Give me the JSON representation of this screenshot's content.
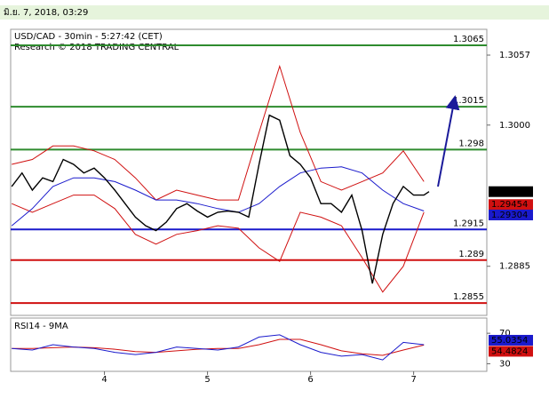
{
  "header": {
    "date": "มิ.ย. 7, 2018, 03:29"
  },
  "chart_data": [
    {
      "type": "line",
      "title": "USD/CAD - 30min - 5:27:42 (CET)",
      "subtitle": "Research © 2018 TRADING CENTRAL",
      "xlim": [
        3.09,
        7.71
      ],
      "ylim": [
        1.2845,
        1.3078
      ],
      "yticks": [
        1.3057,
        {
          "value": 1.3,
          "label": "1.3000"
        },
        1.2885
      ],
      "levels": [
        {
          "value": 1.3065,
          "color": "#2e8b2e"
        },
        {
          "value": 1.3015,
          "color": "#2e8b2e"
        },
        {
          "value": 1.298,
          "color": "#2e8b2e"
        },
        {
          "value": 1.2915,
          "color": "#1a1acc"
        },
        {
          "value": 1.289,
          "color": "#d01010"
        },
        {
          "value": 1.2855,
          "color": "#d01010"
        }
      ],
      "price_labels": [
        {
          "value": 1.29458,
          "color": "#000000"
        },
        {
          "value": 1.29454,
          "color": "#d01010"
        },
        {
          "value": 1.29304,
          "color": "#1a1acc"
        }
      ],
      "series": [
        {
          "color": "#d01010",
          "x": [
            3.1,
            3.3,
            3.5,
            3.7,
            3.9,
            4.1,
            4.3,
            4.5,
            4.7,
            4.9,
            5.1,
            5.3,
            5.5,
            5.7,
            5.9,
            6.1,
            6.3,
            6.5,
            6.7,
            6.9,
            7.1
          ],
          "values": [
            1.2968,
            1.2972,
            1.2983,
            1.2983,
            1.2979,
            1.2972,
            1.2957,
            1.2939,
            1.2947,
            1.2943,
            1.2939,
            1.2939,
            1.2994,
            1.3048,
            1.2994,
            1.2954,
            1.2947,
            1.2954,
            1.2961,
            1.2979,
            1.2954
          ]
        },
        {
          "color": "#d01010",
          "x": [
            3.1,
            3.3,
            3.5,
            3.7,
            3.9,
            4.1,
            4.3,
            4.5,
            4.7,
            4.9,
            5.1,
            5.3,
            5.5,
            5.7,
            5.9,
            6.1,
            6.3,
            6.5,
            6.7,
            6.9,
            7.1
          ],
          "values": [
            1.2936,
            1.2929,
            1.2936,
            1.2943,
            1.2943,
            1.2932,
            1.2911,
            1.2903,
            1.2911,
            1.2914,
            1.2918,
            1.2916,
            1.29,
            1.2889,
            1.2929,
            1.2925,
            1.2918,
            1.2892,
            1.2864,
            1.2885,
            1.2929
          ]
        },
        {
          "color": "#1a1acc",
          "x": [
            3.1,
            3.3,
            3.5,
            3.7,
            3.9,
            4.1,
            4.3,
            4.5,
            4.7,
            4.9,
            5.1,
            5.3,
            5.5,
            5.7,
            5.9,
            6.1,
            6.3,
            6.5,
            6.7,
            6.9,
            7.1
          ],
          "values": [
            1.2918,
            1.2932,
            1.295,
            1.2957,
            1.2957,
            1.2954,
            1.2947,
            1.2939,
            1.2939,
            1.2936,
            1.2932,
            1.2929,
            1.2936,
            1.295,
            1.2961,
            1.2965,
            1.2966,
            1.2961,
            1.2947,
            1.2936,
            1.293
          ]
        },
        {
          "color": "#000000",
          "x": [
            3.1,
            3.2,
            3.3,
            3.4,
            3.5,
            3.6,
            3.7,
            3.8,
            3.9,
            4.0,
            4.1,
            4.2,
            4.3,
            4.4,
            4.5,
            4.6,
            4.7,
            4.8,
            4.9,
            5.0,
            5.1,
            5.2,
            5.3,
            5.4,
            5.5,
            5.6,
            5.7,
            5.8,
            5.9,
            6.0,
            6.1,
            6.2,
            6.3,
            6.4,
            6.5,
            6.6,
            6.7,
            6.8,
            6.9,
            7.0,
            7.1,
            7.15
          ],
          "values": [
            1.295,
            1.2961,
            1.2947,
            1.2957,
            1.2954,
            1.2972,
            1.2968,
            1.2961,
            1.2965,
            1.2957,
            1.2947,
            1.2936,
            1.2925,
            1.2918,
            1.2914,
            1.2921,
            1.2932,
            1.2936,
            1.293,
            1.2925,
            1.2929,
            1.293,
            1.2929,
            1.2925,
            1.2968,
            1.3008,
            1.3004,
            1.2975,
            1.2968,
            1.2957,
            1.2936,
            1.2936,
            1.2929,
            1.2943,
            1.2914,
            1.2871,
            1.2911,
            1.2936,
            1.295,
            1.2943,
            1.2943,
            1.29458
          ]
        }
      ]
    },
    {
      "type": "line",
      "title": "RSI14 - 9MA",
      "xlim": [
        3.09,
        7.71
      ],
      "xticks": [
        4,
        5,
        6,
        7
      ],
      "ylim": [
        20,
        90
      ],
      "yticks": [
        30,
        70
      ],
      "price_labels": [
        {
          "value": 55.0354,
          "color": "#1a1acc"
        },
        {
          "value": 54.4824,
          "color": "#d01010"
        }
      ],
      "series": [
        {
          "color": "#d01010",
          "x": [
            3.1,
            3.3,
            3.5,
            3.7,
            3.9,
            4.1,
            4.3,
            4.5,
            4.7,
            4.9,
            5.1,
            5.3,
            5.5,
            5.7,
            5.9,
            6.1,
            6.3,
            6.5,
            6.7,
            6.9,
            7.1
          ],
          "values": [
            50,
            50,
            51,
            52,
            51,
            49,
            46,
            45,
            47,
            49,
            50,
            50,
            55,
            62,
            62,
            55,
            47,
            43,
            41,
            48,
            54.4824
          ]
        },
        {
          "color": "#1a1acc",
          "x": [
            3.1,
            3.3,
            3.5,
            3.7,
            3.9,
            4.1,
            4.3,
            4.5,
            4.7,
            4.9,
            5.1,
            5.3,
            5.5,
            5.7,
            5.9,
            6.1,
            6.3,
            6.5,
            6.7,
            6.9,
            7.1
          ],
          "values": [
            50,
            48,
            55,
            52,
            50,
            45,
            42,
            45,
            52,
            50,
            48,
            52,
            65,
            68,
            55,
            45,
            40,
            42,
            35,
            58,
            55.0354
          ]
        }
      ]
    }
  ]
}
